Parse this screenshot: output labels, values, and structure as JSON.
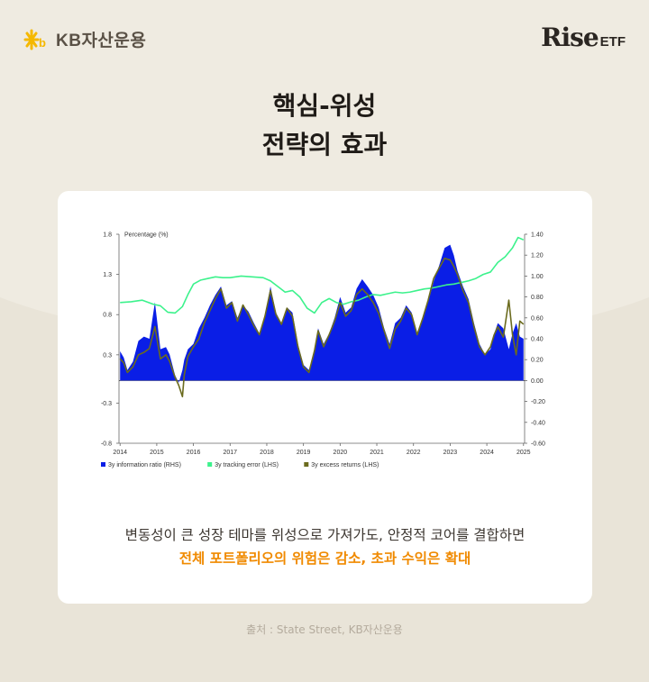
{
  "colors": {
    "background": "#efebe1",
    "accent_orange": "#f08a00",
    "info_ratio": "#0a1ee6",
    "tracking_error": "#3cf28c",
    "excess_returns": "#6b6b1e"
  },
  "header": {
    "kb_logo_icon": "kb-star-icon",
    "kb_brand": "KB자산운용",
    "rise_brand": "Rise",
    "etf_suffix": "ETF"
  },
  "title": {
    "line1": "핵심-위성",
    "line2": "전략의 효과"
  },
  "caption": {
    "line1": "변동성이 큰 성장 테마를 위성으로 가져가도, 안정적 코어를 결합하면",
    "line2": "전체 포트폴리오의 위험은 감소, 초과 수익은 확대"
  },
  "source": "출처 : State Street, KB자산운용",
  "chart_data": {
    "type": "area",
    "title": "",
    "ylabel_left": "Percentage (%)",
    "ylim_left": [
      -0.8,
      1.8
    ],
    "yticks_left": [
      "1.8",
      "1.3",
      "0.8",
      "0.3",
      "-0.3",
      "-0.8"
    ],
    "ylim_right": [
      -0.6,
      1.4
    ],
    "yticks_right": [
      "1.40",
      "1.20",
      "1.00",
      "0.80",
      "0.60",
      "0.40",
      "0.20",
      "0.00",
      "-0.20",
      "-0.40",
      "-0.60"
    ],
    "xticks": [
      "2014",
      "2015",
      "2016",
      "2017",
      "2018",
      "2019",
      "2020",
      "2021",
      "2022",
      "2023",
      "2024",
      "2025"
    ],
    "legend_position": "bottom",
    "series": [
      {
        "name": "3y information ratio (RHS)",
        "axis": "right",
        "x": [
          2014.0,
          2014.1,
          2014.2,
          2014.35,
          2014.5,
          2014.65,
          2014.8,
          2014.95,
          2015.1,
          2015.25,
          2015.35,
          2015.5,
          2015.6,
          2015.7,
          2015.75,
          2015.85,
          2016.0,
          2016.15,
          2016.3,
          2016.45,
          2016.6,
          2016.75,
          2016.9,
          2017.05,
          2017.2,
          2017.35,
          2017.5,
          2017.65,
          2017.8,
          2017.95,
          2018.1,
          2018.25,
          2018.4,
          2018.55,
          2018.7,
          2018.85,
          2019.0,
          2019.15,
          2019.3,
          2019.4,
          2019.55,
          2019.7,
          2019.85,
          2020.0,
          2020.15,
          2020.3,
          2020.45,
          2020.6,
          2020.75,
          2020.9,
          2021.05,
          2021.2,
          2021.35,
          2021.5,
          2021.65,
          2021.8,
          2021.95,
          2022.1,
          2022.25,
          2022.4,
          2022.55,
          2022.7,
          2022.85,
          2023.0,
          2023.1,
          2023.2,
          2023.35,
          2023.5,
          2023.65,
          2023.8,
          2023.95,
          2024.1,
          2024.2,
          2024.3,
          2024.45,
          2024.6,
          2024.7,
          2024.8,
          2024.9,
          2025.0
        ],
        "values": [
          0.28,
          0.22,
          0.1,
          0.18,
          0.38,
          0.42,
          0.4,
          0.75,
          0.3,
          0.32,
          0.25,
          0.05,
          -0.02,
          0.1,
          0.2,
          0.3,
          0.35,
          0.5,
          0.6,
          0.72,
          0.82,
          0.9,
          0.72,
          0.76,
          0.6,
          0.72,
          0.66,
          0.55,
          0.45,
          0.62,
          0.9,
          0.65,
          0.55,
          0.7,
          0.65,
          0.35,
          0.15,
          0.1,
          0.3,
          0.5,
          0.35,
          0.45,
          0.6,
          0.8,
          0.65,
          0.7,
          0.88,
          0.97,
          0.9,
          0.82,
          0.7,
          0.5,
          0.35,
          0.55,
          0.6,
          0.72,
          0.65,
          0.45,
          0.6,
          0.75,
          0.95,
          1.1,
          1.27,
          1.3,
          1.2,
          1.05,
          0.9,
          0.78,
          0.55,
          0.35,
          0.25,
          0.3,
          0.45,
          0.55,
          0.5,
          0.3,
          0.45,
          0.55,
          0.42,
          0.4
        ]
      },
      {
        "name": "3y tracking error (LHS)",
        "axis": "left",
        "x": [
          2014.0,
          2014.3,
          2014.6,
          2014.9,
          2015.1,
          2015.3,
          2015.5,
          2015.7,
          2015.85,
          2016.0,
          2016.2,
          2016.4,
          2016.6,
          2016.8,
          2017.0,
          2017.3,
          2017.6,
          2017.9,
          2018.1,
          2018.3,
          2018.5,
          2018.7,
          2018.9,
          2019.1,
          2019.3,
          2019.5,
          2019.7,
          2019.9,
          2020.1,
          2020.3,
          2020.5,
          2020.7,
          2020.9,
          2021.1,
          2021.3,
          2021.5,
          2021.7,
          2021.9,
          2022.1,
          2022.3,
          2022.5,
          2022.7,
          2022.9,
          2023.1,
          2023.3,
          2023.5,
          2023.7,
          2023.9,
          2024.1,
          2024.3,
          2024.5,
          2024.7,
          2024.85,
          2025.0
        ],
        "values": [
          0.95,
          0.96,
          0.98,
          0.93,
          0.91,
          0.83,
          0.82,
          0.9,
          1.05,
          1.18,
          1.23,
          1.25,
          1.27,
          1.26,
          1.26,
          1.28,
          1.27,
          1.26,
          1.22,
          1.15,
          1.08,
          1.1,
          1.02,
          0.88,
          0.82,
          0.95,
          1.0,
          0.95,
          0.93,
          0.96,
          0.98,
          1.02,
          1.05,
          1.04,
          1.06,
          1.08,
          1.07,
          1.08,
          1.1,
          1.12,
          1.13,
          1.15,
          1.17,
          1.18,
          1.2,
          1.22,
          1.25,
          1.3,
          1.33,
          1.45,
          1.52,
          1.63,
          1.76,
          1.73
        ]
      },
      {
        "name": "3y excess returns (LHS)",
        "axis": "left",
        "x": [
          2014.0,
          2014.1,
          2014.2,
          2014.35,
          2014.5,
          2014.65,
          2014.8,
          2014.95,
          2015.1,
          2015.25,
          2015.35,
          2015.5,
          2015.6,
          2015.7,
          2015.75,
          2015.85,
          2016.0,
          2016.15,
          2016.3,
          2016.45,
          2016.6,
          2016.75,
          2016.9,
          2017.05,
          2017.2,
          2017.35,
          2017.5,
          2017.65,
          2017.8,
          2017.95,
          2018.1,
          2018.25,
          2018.4,
          2018.55,
          2018.7,
          2018.85,
          2019.0,
          2019.15,
          2019.3,
          2019.4,
          2019.55,
          2019.7,
          2019.85,
          2020.0,
          2020.15,
          2020.3,
          2020.45,
          2020.6,
          2020.75,
          2020.9,
          2021.05,
          2021.2,
          2021.35,
          2021.5,
          2021.65,
          2021.8,
          2021.95,
          2022.1,
          2022.25,
          2022.4,
          2022.55,
          2022.7,
          2022.85,
          2023.0,
          2023.1,
          2023.2,
          2023.35,
          2023.5,
          2023.65,
          2023.8,
          2023.95,
          2024.1,
          2024.2,
          2024.3,
          2024.45,
          2024.6,
          2024.7,
          2024.8,
          2024.9,
          2025.0
        ],
        "values": [
          0.25,
          0.2,
          0.08,
          0.15,
          0.3,
          0.33,
          0.38,
          0.65,
          0.25,
          0.3,
          0.22,
          0.02,
          -0.08,
          -0.22,
          0.05,
          0.28,
          0.4,
          0.5,
          0.7,
          0.85,
          1.0,
          1.12,
          0.88,
          0.95,
          0.72,
          0.92,
          0.8,
          0.66,
          0.55,
          0.78,
          1.1,
          0.8,
          0.68,
          0.88,
          0.78,
          0.4,
          0.15,
          0.08,
          0.35,
          0.6,
          0.4,
          0.55,
          0.72,
          0.95,
          0.78,
          0.85,
          1.05,
          1.12,
          1.05,
          0.95,
          0.82,
          0.6,
          0.38,
          0.62,
          0.72,
          0.88,
          0.8,
          0.55,
          0.75,
          0.98,
          1.25,
          1.38,
          1.5,
          1.48,
          1.4,
          1.3,
          1.1,
          0.95,
          0.65,
          0.4,
          0.3,
          0.4,
          0.55,
          0.65,
          0.52,
          0.98,
          0.55,
          0.3,
          0.72,
          0.68
        ]
      }
    ]
  }
}
